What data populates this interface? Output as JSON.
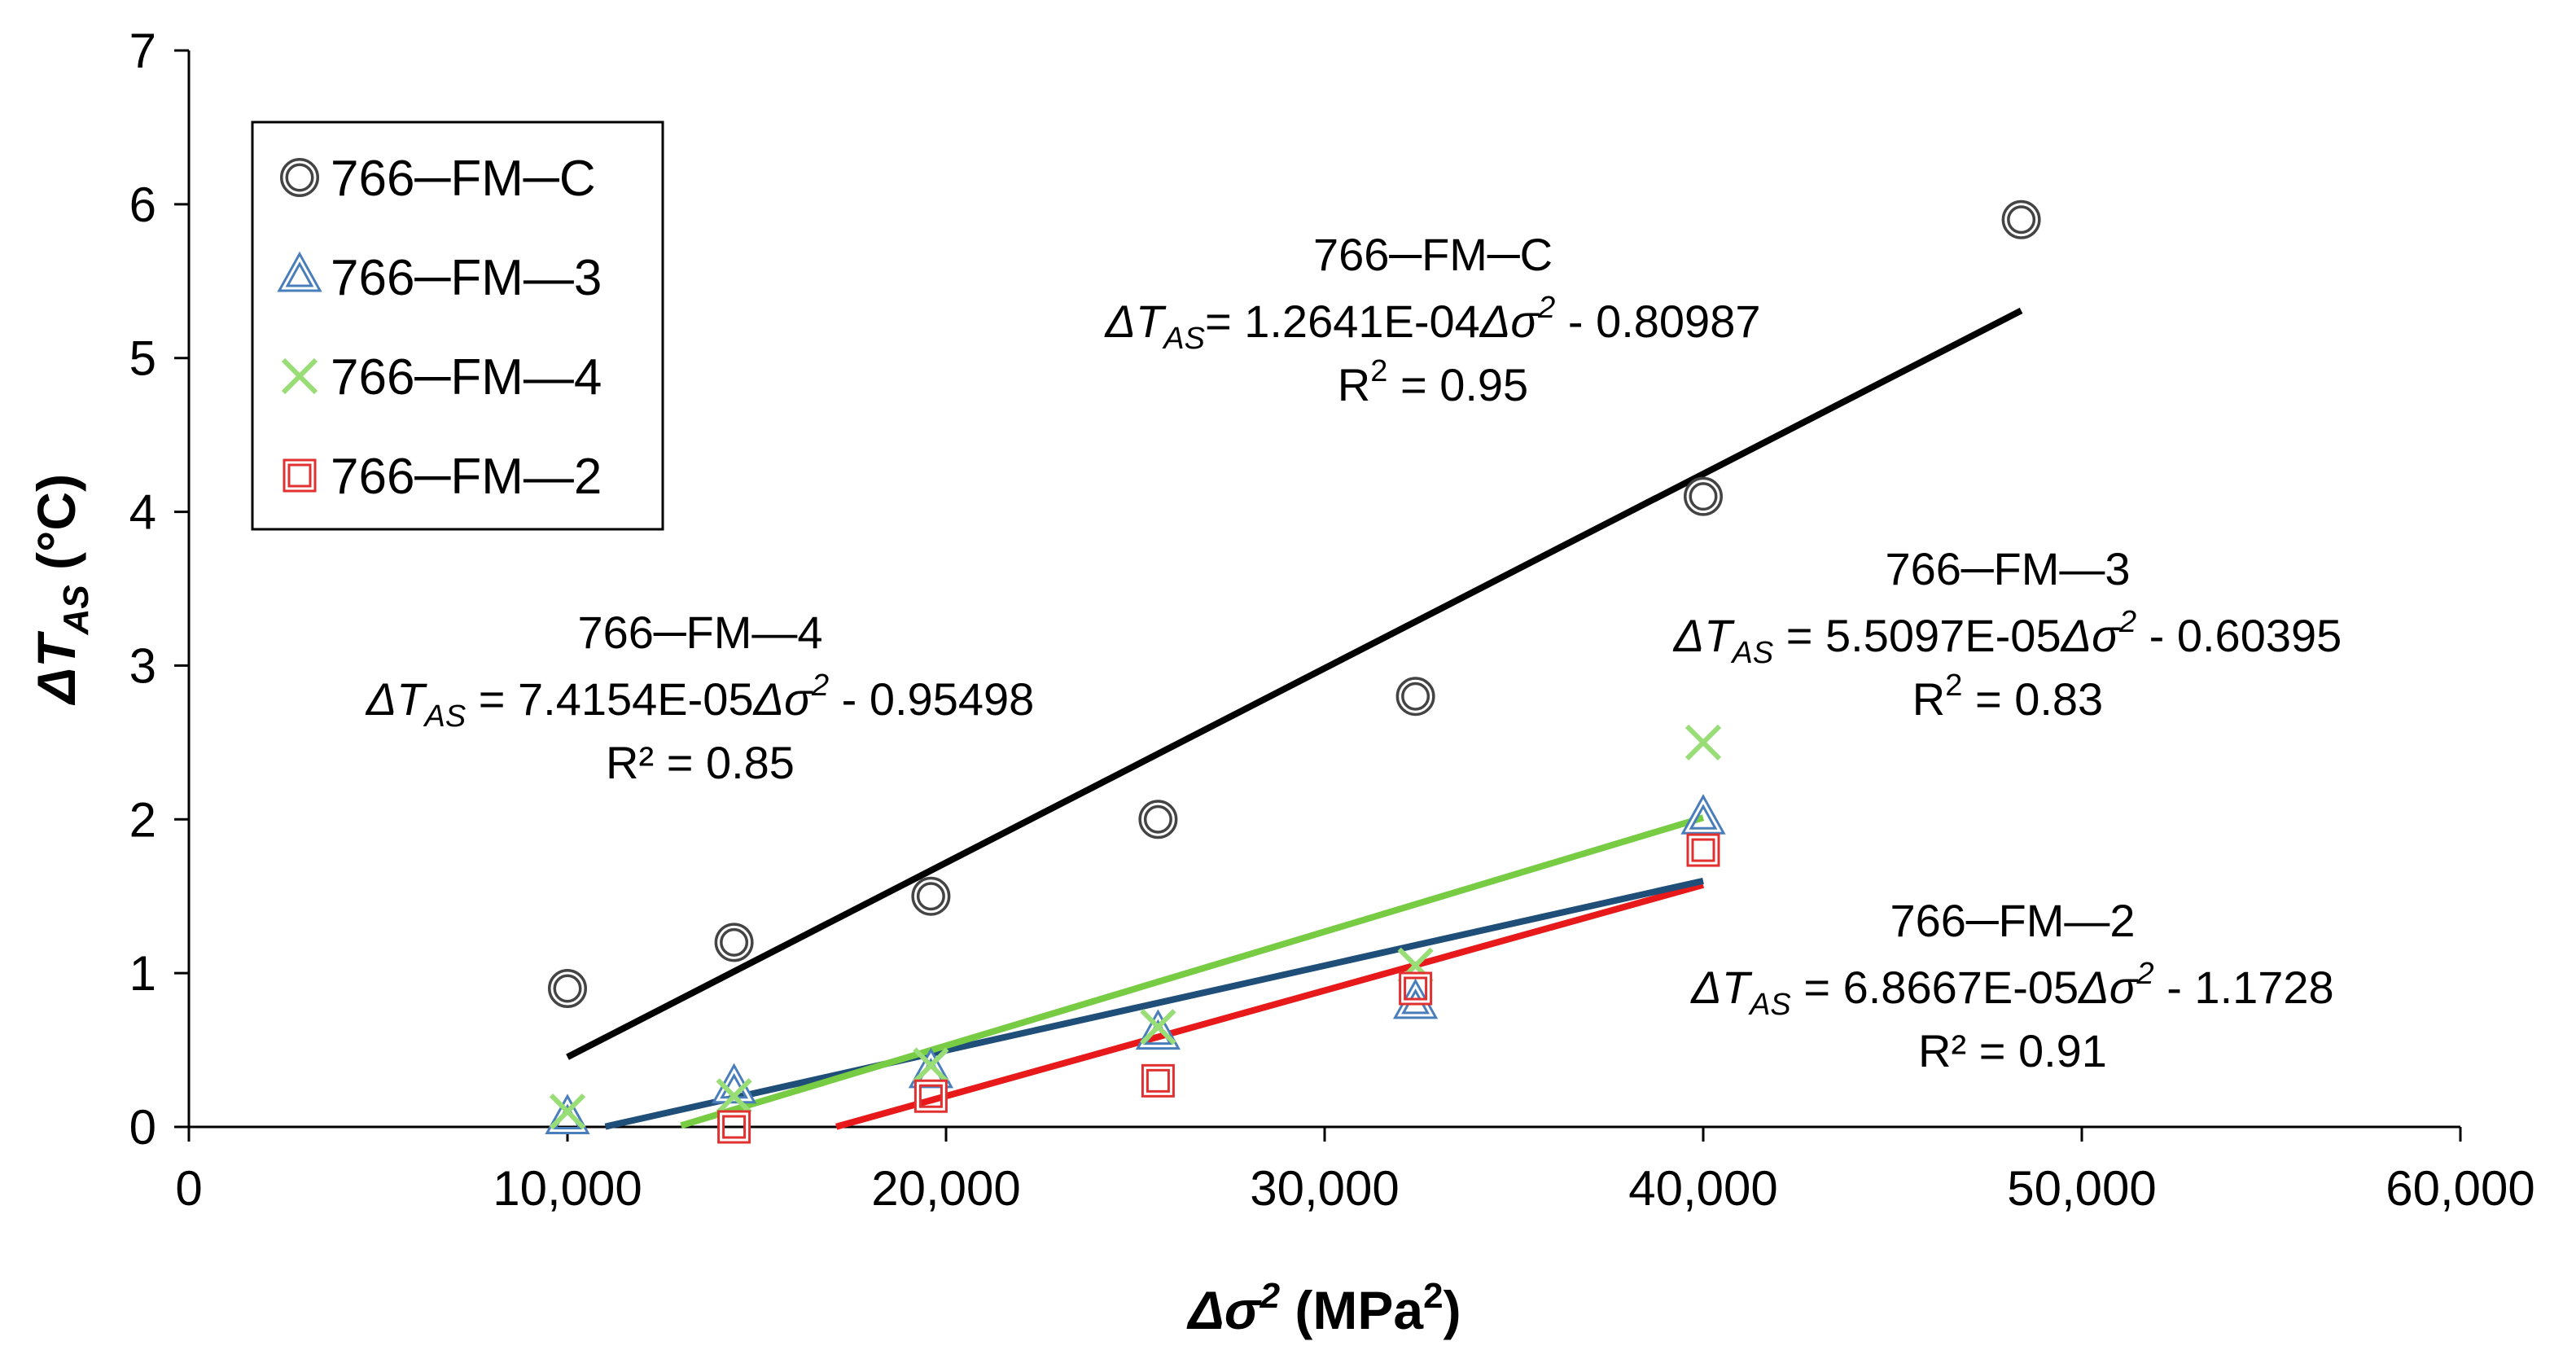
{
  "chart_data": {
    "type": "scatter",
    "title": "",
    "xlabel": {
      "sym": "Δσ",
      "sup": "2",
      "unit": " (MPa",
      "unit_sup": "2",
      "close": ")"
    },
    "ylabel": {
      "sym": "ΔT",
      "sub": "AS",
      "unit": " (°C)"
    },
    "xlim": [
      0,
      60000
    ],
    "ylim": [
      0,
      7
    ],
    "xticks": [
      0,
      10000,
      20000,
      30000,
      40000,
      50000,
      60000
    ],
    "xtick_labels": [
      "0",
      "10,000",
      "20,000",
      "30,000",
      "40,000",
      "50,000",
      "60,000"
    ],
    "yticks": [
      0,
      1,
      2,
      3,
      4,
      5,
      6,
      7
    ],
    "ytick_labels": [
      "0",
      "1",
      "2",
      "3",
      "4",
      "5",
      "6",
      "7"
    ],
    "legend_position": "top-left",
    "series": [
      {
        "name": "766─FM─C",
        "marker": "circle",
        "color": "#000000",
        "stroke": "#444444",
        "x": [
          10000,
          14400,
          19600,
          25600,
          32400,
          40000,
          48400
        ],
        "y": [
          0.9,
          1.2,
          1.5,
          2.0,
          2.8,
          4.1,
          5.9
        ],
        "fit": {
          "slope": 0.00012641,
          "intercept": -0.80987,
          "x_range": [
            10000,
            48400
          ]
        }
      },
      {
        "name": "766─FM—3",
        "marker": "triangle",
        "color": "#1F4E79",
        "stroke": "#4A7EBB",
        "x": [
          10000,
          14400,
          19600,
          25600,
          32400,
          40000
        ],
        "y": [
          0.05,
          0.25,
          0.35,
          0.6,
          0.8,
          2.0
        ],
        "fit": {
          "slope": 5.5097e-05,
          "intercept": -0.60395,
          "x_range": [
            11000,
            40000
          ]
        }
      },
      {
        "name": "766─FM—4",
        "marker": "x",
        "color": "#77CC44",
        "stroke": "#99DD77",
        "x": [
          10000,
          14400,
          19600,
          25600,
          32400,
          40000
        ],
        "y": [
          0.1,
          0.2,
          0.4,
          0.65,
          1.05,
          2.5
        ],
        "fit": {
          "slope": 7.4154e-05,
          "intercept": -0.95498,
          "x_range": [
            13000,
            40000
          ]
        }
      },
      {
        "name": "766─FM—2",
        "marker": "square",
        "color": "#E8191A",
        "stroke": "#E03030",
        "x": [
          14400,
          19600,
          25600,
          32400,
          40000
        ],
        "y": [
          0.0,
          0.2,
          0.3,
          0.9,
          1.8
        ],
        "fit": {
          "slope": 6.8667e-05,
          "intercept": -1.1728,
          "x_range": [
            17100,
            40000
          ]
        }
      }
    ],
    "annotations": [
      {
        "id": "C",
        "title": "766─FM─C",
        "eq_rest": "= 1.2641E-04",
        "eq_tail": " - 0.80987",
        "r2_label": "R",
        "r2_rest": " = 0.95"
      },
      {
        "id": "3",
        "title": "766─FM—3",
        "eq_rest": " = 5.5097E-05",
        "eq_tail": " - 0.60395",
        "r2_label": "R",
        "r2_rest": " = 0.83"
      },
      {
        "id": "4",
        "title": "766─FM—4",
        "eq_rest": " = 7.4154E-05",
        "eq_tail": " - 0.95498",
        "r2_label": "R² = 0.85",
        "r2_rest": ""
      },
      {
        "id": "2",
        "title": "766─FM—2",
        "eq_rest": " = 6.8667E-05",
        "eq_tail": " - 1.1728",
        "r2_label": "R² = 0.91",
        "r2_rest": ""
      }
    ],
    "eq_symbols": {
      "dt": "ΔT",
      "dt_sub": "AS",
      "ds": "Δσ",
      "ds_sup": "2",
      "r2_sup": "2"
    }
  }
}
